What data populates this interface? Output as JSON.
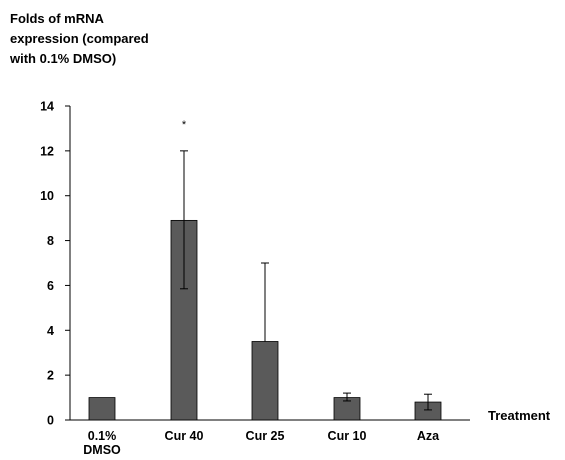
{
  "chart_data": {
    "type": "bar",
    "ylabel_lines": [
      "Folds of mRNA",
      "expression (compared",
      "with 0.1% DMSO)"
    ],
    "xlabel": "Treatment",
    "categories": [
      {
        "lines": [
          "0.1%",
          "DMSO"
        ]
      },
      {
        "lines": [
          "Cur 40"
        ]
      },
      {
        "lines": [
          "Cur 25"
        ]
      },
      {
        "lines": [
          "Cur 10"
        ]
      },
      {
        "lines": [
          "Aza"
        ]
      }
    ],
    "values": [
      1.0,
      8.9,
      3.5,
      1.0,
      0.8
    ],
    "error_upper": [
      null,
      12.0,
      7.0,
      1.2,
      1.15
    ],
    "error_lower": [
      null,
      5.85,
      null,
      0.85,
      0.45
    ],
    "annotations": [
      {
        "category_index": 1,
        "text": "*",
        "y": 13.2
      }
    ],
    "yticks": [
      "0",
      "2",
      "4",
      "6",
      "8",
      "10",
      "12",
      "14"
    ],
    "ylim": [
      0,
      14
    ],
    "bar_color": "#5a5a5a",
    "grid": false,
    "legend": "none"
  }
}
